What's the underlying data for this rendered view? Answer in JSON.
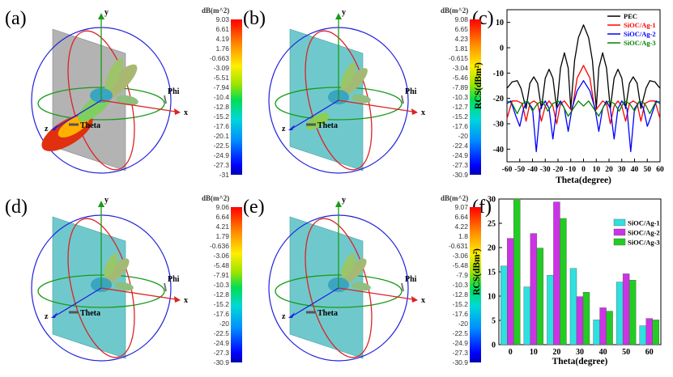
{
  "panel_labels": [
    "(a)",
    "(b)",
    "(c)",
    "(d)",
    "(e)",
    "(f)"
  ],
  "axes3d": {
    "x": "x",
    "y": "y",
    "z": "z",
    "theta": "Theta",
    "phi": "Phi"
  },
  "colorbars": [
    {
      "id": "a",
      "title": "dB(m^2)",
      "ticks": [
        "9.03",
        "6.61",
        "4.19",
        "1.76",
        "-0.663",
        "-3.09",
        "-5.51",
        "-7.94",
        "-10.4",
        "-12.8",
        "-15.2",
        "-17.6",
        "-20.1",
        "-22.5",
        "-24.9",
        "-27.3",
        "-31"
      ]
    },
    {
      "id": "b",
      "title": "dB(m^2)",
      "ticks": [
        "9.08",
        "6.65",
        "4.23",
        "1.81",
        "-0.615",
        "-3.04",
        "-5.46",
        "-7.89",
        "-10.3",
        "-12.7",
        "-15.2",
        "-17.6",
        "-20",
        "-22.4",
        "-24.9",
        "-27.3",
        "-30.9"
      ]
    },
    {
      "id": "d",
      "title": "dB(m^2)",
      "ticks": [
        "9.06",
        "6.64",
        "4.21",
        "1.79",
        "-0.636",
        "-3.06",
        "-5.48",
        "-7.91",
        "-10.3",
        "-12.8",
        "-15.2",
        "-17.6",
        "-20",
        "-22.5",
        "-24.9",
        "-27.3",
        "-30.9"
      ]
    },
    {
      "id": "e",
      "title": "dB(m^2)",
      "ticks": [
        "9.07",
        "6.64",
        "4.22",
        "1.8",
        "-0.631",
        "-3.06",
        "-5.48",
        "-7.9",
        "-10.3",
        "-12.8",
        "-15.2",
        "-17.6",
        "-20",
        "-22.5",
        "-24.9",
        "-27.3",
        "-30.9"
      ]
    }
  ],
  "chart_data": [
    {
      "type": "line",
      "panel": "(c)",
      "xlabel": "Theta(degree)",
      "ylabel": "RCS(dBm²)",
      "xlim": [
        -60,
        60
      ],
      "ylim": [
        -45,
        15
      ],
      "xticks": [
        "-60",
        "-50",
        "-40",
        "-30",
        "-20",
        "-10",
        "0",
        "10",
        "20",
        "30",
        "40",
        "50",
        "60"
      ],
      "yticks": [
        "-40",
        "-30",
        "-20",
        "-10",
        "0",
        "10"
      ],
      "legend_position": "top-right",
      "series": [
        {
          "name": "PEC",
          "color": "#000000",
          "x": [
            -60,
            -56,
            -52,
            -49,
            -45,
            -42,
            -39,
            -36,
            -33,
            -30,
            -27,
            -24,
            -21,
            -18,
            -15,
            -12,
            -10,
            -7,
            -4,
            0,
            4,
            7,
            10,
            12,
            15,
            18,
            21,
            24,
            27,
            30,
            33,
            36,
            39,
            42,
            45,
            49,
            52,
            56,
            60
          ],
          "y": [
            -16,
            -13.5,
            -13,
            -16,
            -24,
            -14,
            -11.5,
            -14,
            -24,
            -12,
            -8.5,
            -12,
            -24,
            -8,
            -2,
            -8,
            -24,
            -5,
            4,
            9,
            4,
            -5,
            -24,
            -8,
            -2,
            -8,
            -24,
            -12,
            -8.5,
            -12,
            -24,
            -14,
            -11.5,
            -14,
            -24,
            -16,
            -13,
            -13.5,
            -16
          ]
        },
        {
          "name": "SiOC/Ag-1",
          "color": "#ff0000",
          "x": [
            -60,
            -56,
            -52,
            -48,
            -45,
            -42,
            -39,
            -36,
            -33,
            -30,
            -27,
            -24,
            -21,
            -18,
            -15,
            -12,
            -9,
            -5,
            0,
            5,
            9,
            12,
            15,
            18,
            21,
            24,
            27,
            30,
            33,
            36,
            39,
            42,
            45,
            48,
            52,
            56,
            60
          ],
          "y": [
            -28,
            -21,
            -21,
            -22,
            -29,
            -22,
            -21,
            -22,
            -29,
            -23,
            -21,
            -23,
            -30,
            -22,
            -21,
            -23,
            -25,
            -12,
            -7,
            -12,
            -25,
            -23,
            -21,
            -22,
            -30,
            -23,
            -21,
            -23,
            -29,
            -22,
            -21,
            -22,
            -29,
            -22,
            -21,
            -21,
            -28
          ]
        },
        {
          "name": "SiOC/Ag-2",
          "color": "#0000ff",
          "x": [
            -60,
            -57,
            -53,
            -50,
            -47,
            -44,
            -40,
            -37,
            -34,
            -30,
            -27,
            -24,
            -21,
            -18,
            -15,
            -12,
            -9,
            -5,
            0,
            5,
            9,
            12,
            15,
            18,
            21,
            24,
            27,
            30,
            34,
            37,
            40,
            44,
            47,
            50,
            53,
            57,
            60
          ],
          "y": [
            -22,
            -21,
            -27,
            -31,
            -24,
            -21,
            -24,
            -41,
            -24,
            -21,
            -24,
            -36,
            -24,
            -21,
            -24,
            -33,
            -24,
            -17,
            -13,
            -17,
            -24,
            -33,
            -24,
            -21,
            -24,
            -36,
            -24,
            -21,
            -24,
            -41,
            -24,
            -21,
            -24,
            -31,
            -27,
            -21,
            -22
          ]
        },
        {
          "name": "SiOC/Ag-3",
          "color": "#008000",
          "x": [
            -60,
            -56,
            -52,
            -48,
            -44,
            -40,
            -36,
            -32,
            -28,
            -24,
            -20,
            -16,
            -12,
            -8,
            -4,
            0,
            4,
            8,
            12,
            16,
            20,
            24,
            28,
            32,
            36,
            40,
            44,
            48,
            52,
            56,
            60
          ],
          "y": [
            -21,
            -22,
            -26,
            -22,
            -21,
            -25,
            -22,
            -21,
            -25,
            -22,
            -21,
            -23,
            -27,
            -24,
            -21,
            -23,
            -21,
            -24,
            -27,
            -23,
            -21,
            -22,
            -25,
            -21,
            -22,
            -25,
            -21,
            -22,
            -26,
            -22,
            -21
          ]
        }
      ]
    },
    {
      "type": "bar",
      "panel": "(f)",
      "xlabel": "Theta(degree)",
      "ylabel": "RCS(dBm²)",
      "categories": [
        "0",
        "10",
        "20",
        "30",
        "40",
        "50",
        "60"
      ],
      "ylim": [
        0,
        30
      ],
      "yticks": [
        "0",
        "5",
        "10",
        "15",
        "20",
        "25",
        "30"
      ],
      "legend_position": "top-right",
      "series": [
        {
          "name": "SiOC/Ag-1",
          "color": "#2fe0e0",
          "values": [
            16.2,
            11.9,
            14.3,
            15.7,
            5.1,
            12.9,
            3.9
          ]
        },
        {
          "name": "SiOC/Ag-2",
          "color": "#cc33e6",
          "values": [
            21.9,
            22.9,
            29.4,
            9.9,
            7.6,
            14.6,
            5.4
          ]
        },
        {
          "name": "SiOC/Ag-3",
          "color": "#22cc22",
          "values": [
            30.0,
            19.9,
            26.0,
            10.8,
            6.9,
            13.3,
            5.1
          ]
        }
      ]
    }
  ]
}
